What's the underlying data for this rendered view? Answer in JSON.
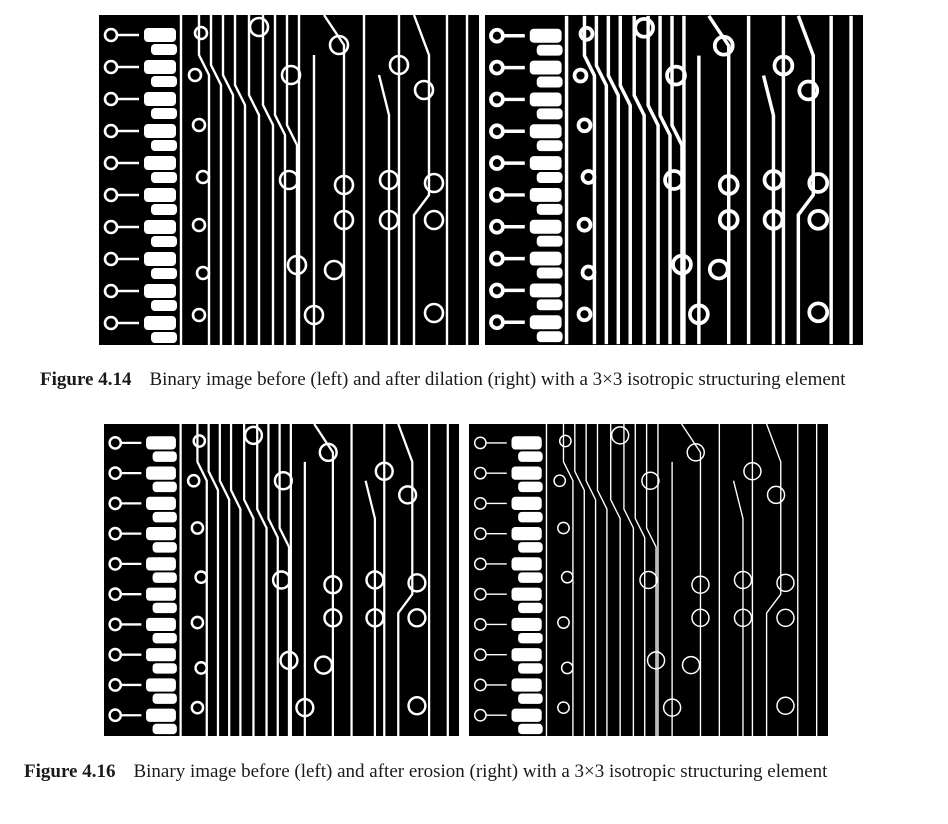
{
  "figures": [
    {
      "label": "Figure 4.14",
      "caption": "Binary image before (left) and after dilation (right) with a 3×3 isotropic structuring element",
      "left_panel": "binary-image-before",
      "right_panel": "binary-image-after-dilation"
    },
    {
      "label": "Figure 4.16",
      "caption": "Binary image before (left) and after erosion (right) with a 3×3 isotropic structuring element",
      "left_panel": "binary-image-before",
      "right_panel": "binary-image-after-erosion"
    }
  ],
  "colors": {
    "background": "#000000",
    "foreground": "#ffffff",
    "text": "#1a1a1a"
  }
}
